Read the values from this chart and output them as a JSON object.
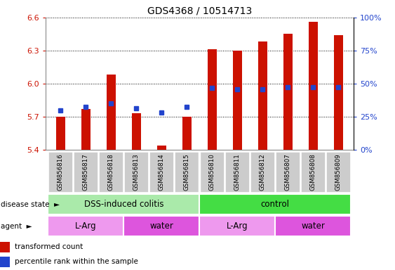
{
  "title": "GDS4368 / 10514713",
  "samples": [
    "GSM856816",
    "GSM856817",
    "GSM856818",
    "GSM856813",
    "GSM856814",
    "GSM856815",
    "GSM856810",
    "GSM856811",
    "GSM856812",
    "GSM856807",
    "GSM856808",
    "GSM856809"
  ],
  "bar_values": [
    5.7,
    5.77,
    6.08,
    5.73,
    5.44,
    5.7,
    6.31,
    6.3,
    6.38,
    6.45,
    6.56,
    6.44
  ],
  "dot_values": [
    5.76,
    5.79,
    5.82,
    5.78,
    5.74,
    5.79,
    5.96,
    5.95,
    5.95,
    5.97,
    5.97,
    5.97
  ],
  "ymin": 5.4,
  "ymax": 6.6,
  "yticks": [
    5.4,
    5.7,
    6.0,
    6.3,
    6.6
  ],
  "bar_color": "#cc1100",
  "dot_color": "#2244cc",
  "disease_state_groups": [
    {
      "label": "DSS-induced colitis",
      "start": 0,
      "end": 6,
      "color": "#aaeaaa"
    },
    {
      "label": "control",
      "start": 6,
      "end": 12,
      "color": "#44dd44"
    }
  ],
  "agent_groups": [
    {
      "label": "L-Arg",
      "start": 0,
      "end": 3,
      "color": "#ee99ee"
    },
    {
      "label": "water",
      "start": 3,
      "end": 6,
      "color": "#dd55dd"
    },
    {
      "label": "L-Arg",
      "start": 6,
      "end": 9,
      "color": "#ee99ee"
    },
    {
      "label": "water",
      "start": 9,
      "end": 12,
      "color": "#dd55dd"
    }
  ],
  "right_ytick_pcts": [
    0,
    25,
    50,
    75,
    100
  ],
  "right_ytick_labels": [
    "0%",
    "25%",
    "50%",
    "75%",
    "100%"
  ],
  "legend_labels": [
    "transformed count",
    "percentile rank within the sample"
  ],
  "legend_colors": [
    "#cc1100",
    "#2244cc"
  ],
  "bg_color": "#ffffff",
  "tick_label_bg": "#cccccc",
  "bar_width": 0.35
}
